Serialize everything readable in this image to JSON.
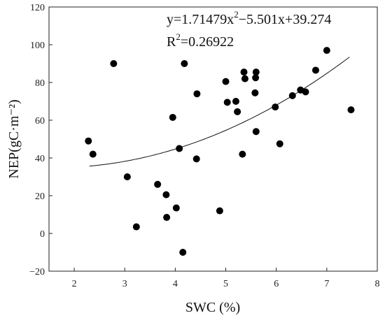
{
  "chart_data": {
    "type": "scatter",
    "xlabel": "SWC (%)",
    "ylabel": "NEP(gC·m⁻²)",
    "xlim": [
      1.5,
      8
    ],
    "ylim": [
      -20,
      120
    ],
    "xticks": [
      2,
      3,
      4,
      5,
      6,
      7,
      8
    ],
    "yticks": [
      -20,
      0,
      20,
      40,
      60,
      80,
      100,
      120
    ],
    "grid": false,
    "points": [
      {
        "x": 2.28,
        "y": 49
      },
      {
        "x": 2.37,
        "y": 42
      },
      {
        "x": 2.78,
        "y": 90
      },
      {
        "x": 3.05,
        "y": 30
      },
      {
        "x": 3.23,
        "y": 3.5
      },
      {
        "x": 3.65,
        "y": 26
      },
      {
        "x": 3.82,
        "y": 20.5
      },
      {
        "x": 3.83,
        "y": 8.5
      },
      {
        "x": 3.95,
        "y": 61.5
      },
      {
        "x": 4.02,
        "y": 13.5
      },
      {
        "x": 4.08,
        "y": 45
      },
      {
        "x": 4.15,
        "y": -10
      },
      {
        "x": 4.18,
        "y": 90
      },
      {
        "x": 4.42,
        "y": 39.5
      },
      {
        "x": 4.43,
        "y": 74
      },
      {
        "x": 4.88,
        "y": 12
      },
      {
        "x": 5.0,
        "y": 80.5
      },
      {
        "x": 5.03,
        "y": 69.5
      },
      {
        "x": 5.2,
        "y": 70
      },
      {
        "x": 5.23,
        "y": 64.5
      },
      {
        "x": 5.33,
        "y": 42
      },
      {
        "x": 5.36,
        "y": 85.5
      },
      {
        "x": 5.38,
        "y": 82
      },
      {
        "x": 5.58,
        "y": 74.5
      },
      {
        "x": 5.59,
        "y": 82.5
      },
      {
        "x": 5.6,
        "y": 85.5
      },
      {
        "x": 5.6,
        "y": 54
      },
      {
        "x": 5.98,
        "y": 67
      },
      {
        "x": 6.07,
        "y": 47.5
      },
      {
        "x": 6.32,
        "y": 73
      },
      {
        "x": 6.48,
        "y": 76
      },
      {
        "x": 6.58,
        "y": 75
      },
      {
        "x": 6.78,
        "y": 86.5
      },
      {
        "x": 7.0,
        "y": 97
      },
      {
        "x": 7.48,
        "y": 65.5
      }
    ],
    "fit": {
      "a": 1.71479,
      "b": -5.501,
      "c": 39.274,
      "x_range": [
        2.3,
        7.45
      ]
    },
    "annotation": {
      "equation_main": "y=1.71479x",
      "equation_sup": "2",
      "equation_rest": "−5.501x+39.274",
      "r2_main": "R",
      "r2_sup": "2",
      "r2_rest": "=0.26922"
    }
  }
}
